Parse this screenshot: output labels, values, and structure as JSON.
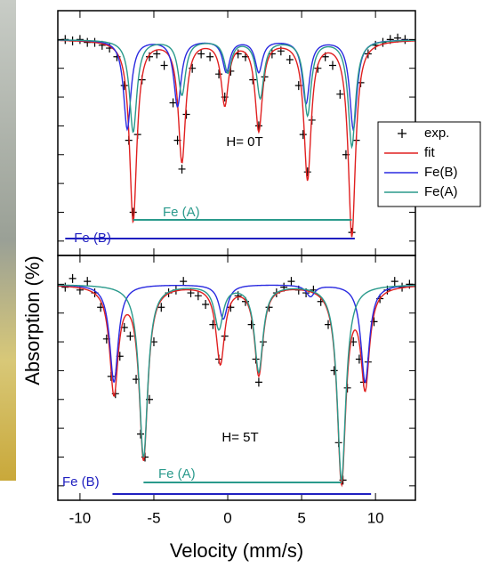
{
  "chart_data": [
    {
      "type": "mossbauer",
      "annotation": "H= 0T",
      "ylabel": "Absorption  (%)",
      "xlim": [
        -11.5,
        12.7
      ],
      "ylim": [
        -7.5,
        1
      ],
      "yticks": [
        -7,
        -6,
        -5,
        -4,
        -3,
        -2,
        -1,
        0
      ],
      "series": [
        {
          "name": "exp.",
          "color": "#000000",
          "x": [
            -11,
            -10.5,
            -10,
            -9.5,
            -9,
            -8.5,
            -8,
            -7.5,
            -7,
            -6.7,
            -6.4,
            -6.1,
            -5.8,
            -5.3,
            -4.8,
            -4.3,
            -3.7,
            -3.4,
            -3.1,
            -2.8,
            -2.4,
            -1.8,
            -1.2,
            -0.6,
            -0.2,
            0.2,
            0.7,
            1.2,
            1.7,
            2.1,
            2.5,
            3,
            3.6,
            4.2,
            4.8,
            5.1,
            5.4,
            5.7,
            6.1,
            6.6,
            7.1,
            7.6,
            8,
            8.4,
            8.7,
            9,
            9.5,
            10,
            10.5,
            11,
            11.5,
            12
          ],
          "values": [
            0,
            -0.05,
            0,
            -0.1,
            -0.1,
            -0.2,
            -0.3,
            -0.6,
            -1.6,
            -3.5,
            -6,
            -3.3,
            -1.4,
            -0.6,
            -0.5,
            -0.9,
            -2.2,
            -3.5,
            -4.5,
            -2.6,
            -1,
            -0.5,
            -0.6,
            -1.2,
            -2,
            -1.1,
            -0.5,
            -0.6,
            -1.4,
            -3,
            -1.3,
            -0.5,
            -0.4,
            -0.7,
            -1.6,
            -3.3,
            -4.6,
            -2.8,
            -1,
            -0.6,
            -0.9,
            -1.9,
            -4,
            -6.7,
            -3.5,
            -1.5,
            -0.5,
            -0.2,
            -0.1,
            0,
            0.05,
            0
          ]
        },
        {
          "name": "fit",
          "color": "#e02020",
          "width": 0.3,
          "positions": [
            -6.4,
            -3.1,
            -0.2,
            2.1,
            5.4,
            8.4
          ],
          "depths": [
            -6.3,
            -4.2,
            -2.2,
            -3.1,
            -4.8,
            -6.8
          ]
        },
        {
          "name": "Fe(B)",
          "color": "#2a2ae0",
          "width": 0.3,
          "positions": [
            -6.8,
            -3.4,
            -0.1,
            2.1,
            5.3,
            8.5
          ],
          "depths": [
            -3.1,
            -2.3,
            -1.1,
            -1.1,
            -2.2,
            -3.1
          ]
        },
        {
          "name": "Fe(A)",
          "color": "#2a9a8c",
          "width": 0.3,
          "positions": [
            -6.4,
            -3.1,
            0,
            2.2,
            5.4,
            8.4
          ],
          "depths": [
            -3.2,
            -1.9,
            -1.1,
            -2,
            -2.6,
            -3.7
          ]
        }
      ],
      "bars": [
        {
          "label": "Fe (A)",
          "color": "#2a9a8c",
          "x": [
            -6.4,
            8.4
          ]
        },
        {
          "label": "Fe (B)",
          "color": "#2020c0",
          "x": [
            -11,
            8.6
          ]
        }
      ]
    },
    {
      "type": "mossbauer",
      "annotation": "H= 5T",
      "xlabel": "Velocity  (mm/s)",
      "xlim": [
        -11.5,
        12.7
      ],
      "ylim": [
        -7.5,
        1
      ],
      "yticks": [
        -7,
        -6,
        -5,
        -4,
        -3,
        -2,
        -1,
        0
      ],
      "xticks": [
        -10,
        -5,
        0,
        5,
        10
      ],
      "series": [
        {
          "color": "#000000",
          "x": [
            -11,
            -10.5,
            -10,
            -9.5,
            -9,
            -8.6,
            -8.2,
            -7.9,
            -7.6,
            -7.3,
            -7,
            -6.6,
            -6.2,
            -5.9,
            -5.6,
            -5.3,
            -5,
            -4.5,
            -4,
            -3.5,
            -3,
            -2.5,
            -2,
            -1.5,
            -1,
            -0.6,
            -0.2,
            0.2,
            0.7,
            1.2,
            1.6,
            1.9,
            2.1,
            2.4,
            2.8,
            3.3,
            3.8,
            4.3,
            4.8,
            5.3,
            5.8,
            6.3,
            6.8,
            7.2,
            7.5,
            7.8,
            8.1,
            8.5,
            8.9,
            9.2,
            9.5,
            9.9,
            10.3,
            10.8,
            11.3,
            11.8,
            12.3
          ],
          "values": [
            -0.1,
            0.2,
            -0.2,
            0.1,
            -0.3,
            -0.8,
            -1.9,
            -3.2,
            -3.8,
            -2.5,
            -1.5,
            -1.8,
            -3.3,
            -5.2,
            -6,
            -4,
            -2,
            -0.8,
            -0.3,
            -0.2,
            0.1,
            -0.3,
            -0.4,
            -0.7,
            -1.4,
            -2.6,
            -1.8,
            -0.8,
            -0.4,
            -0.6,
            -1.4,
            -2.6,
            -3.4,
            -2,
            -0.8,
            -0.3,
            -0.1,
            0.1,
            -0.2,
            -0.3,
            -0.2,
            -0.6,
            -1.4,
            -3,
            -5.5,
            -6.8,
            -3.6,
            -2,
            -2.6,
            -3.4,
            -2.7,
            -1.3,
            -0.5,
            -0.2,
            0.1,
            -0.1,
            0
          ]
        },
        {
          "color": "#e02020",
          "width": 0.35,
          "positions": [
            -7.7,
            -5.7,
            -0.5,
            2.1,
            7.7,
            9.3
          ],
          "depths": [
            -3.7,
            -6,
            -2.7,
            -3.1,
            -6.8,
            -3.4
          ]
        },
        {
          "color": "#2a2ae0",
          "width": 0.35,
          "positions": [
            -7.7,
            -0.3,
            5.6,
            9.3
          ],
          "depths": [
            -3.4,
            -1.2,
            -0.4,
            -3.4
          ]
        },
        {
          "color": "#2a9a8c",
          "width": 0.35,
          "positions": [
            -5.7,
            -0.6,
            2.1,
            7.7
          ],
          "depths": [
            -6,
            -1.5,
            -3,
            -6.8
          ]
        }
      ],
      "bars": [
        {
          "label": "Fe (A)",
          "color": "#2a9a8c",
          "x": [
            -5.7,
            7.7
          ]
        },
        {
          "label": "Fe (B)",
          "color": "#2020c0",
          "x": [
            -7.8,
            9.7
          ]
        }
      ]
    }
  ]
}
